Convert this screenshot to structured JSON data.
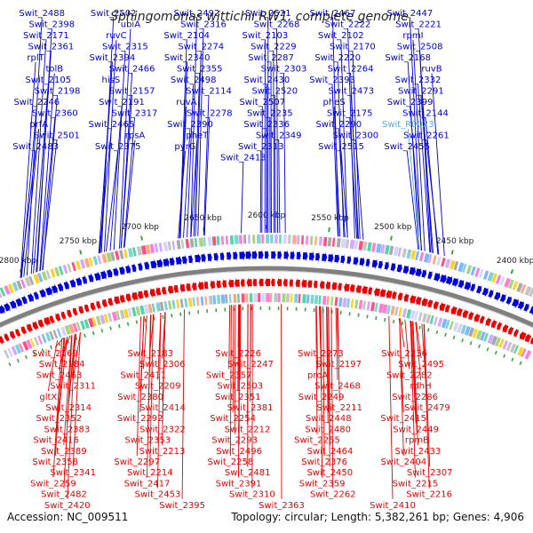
{
  "title": "Sphingomonas wittichii RW1, complete genome",
  "footer": {
    "accession": "Accession: NC_009511",
    "summary": "Topology: circular; Length: 5,382,261 bp; Genes: 4,906"
  },
  "colors": {
    "forward": "#0000dd",
    "reverse": "#ee0000",
    "rna": "#55aadd",
    "backbone": "#808080",
    "tick": "#33aa33"
  },
  "scale_ticks": [
    "2400 kbp",
    "2450 kbp",
    "2500 kbp",
    "2550 kbp",
    "2600 kbp",
    "2650 kbp",
    "2700 kbp",
    "2750 kbp",
    "2800 kbp"
  ],
  "top_labels": [
    "Swit_2488",
    "Swit_2502",
    "Swit_2492",
    "Swit_2521",
    "Swit_2467",
    "Swit_2447",
    "Swit_2398",
    "ubiA",
    "Swit_2316",
    "Swit_2268",
    "Swit_2222",
    "Swit_2221",
    "Swit_2171",
    "ruvC",
    "Swit_2104",
    "Swit_2103",
    "Swit_2102",
    "rpmI",
    "Swit_2361",
    "Swit_2315",
    "Swit_2274",
    "Swit_2229",
    "Swit_2170",
    "Swit_2508",
    "rplT",
    "Swit_2394",
    "Swit_2340",
    "Swit_2287",
    "Swit_2220",
    "Swit_2168",
    "tolB",
    "Swit_2466",
    "Swit_2355",
    "Swit_2303",
    "Swit_2264",
    "ruvB",
    "Swit_2105",
    "hisS",
    "Swit_2498",
    "Swit_2430",
    "Swit_2393",
    "Swit_2332",
    "Swit_2198",
    "Swit_2157",
    "Swit_2114",
    "Swit_2520",
    "Swit_2473",
    "Swit_2291",
    "Swit_2246",
    "Swit_2191",
    "ruvA",
    "Swit_2507",
    "pheS",
    "Swit_2399",
    "Swit_2360",
    "Swit_2317",
    "Swit_2278",
    "Swit_2235",
    "Swit_2175",
    "Swit_2144",
    "prfA",
    "Swit_2465",
    "Swit_2390",
    "Swit_2336",
    "Swit_2290",
    "Swit_R0023",
    "Swit_2501",
    "rpsA",
    "pheT",
    "Swit_2349",
    "Swit_2300",
    "Swit_2261",
    "Swit_2483",
    "Swit_2375",
    "pyrG",
    "Swit_2313",
    "Swit_2515",
    "Swit_2455",
    "Swit_2413"
  ],
  "bottom_labels": [
    "Swit_2169",
    "Swit_2183",
    "Swit_2226",
    "Swit_2273",
    "Swit_2236",
    "Swit_2184",
    "Swit_2306",
    "Swit_2247",
    "Swit_2197",
    "Swit_2495",
    "Swit_2463",
    "Swit_2411",
    "Swit_2357",
    "proA",
    "Swit_2282",
    "Swit_2311",
    "Swit_2209",
    "Swit_2503",
    "Swit_2468",
    "rdhH",
    "gltX",
    "Swit_2380",
    "Swit_2351",
    "Swit_2249",
    "Swit_2286",
    "Swit_2314",
    "Swit_2414",
    "Swit_2381",
    "Swit_2211",
    "Swit_2479",
    "Swit_2352",
    "Swit_2292",
    "Swit_2254",
    "Swit_2448",
    "Swit_2415",
    "Swit_2383",
    "Swit_2322",
    "Swit_2212",
    "Swit_2480",
    "Swit_2449",
    "Swit_2416",
    "Swit_2353",
    "Swit_2293",
    "Swit_2255",
    "rpmB",
    "Swit_2389",
    "Swit_2213",
    "Swit_2496",
    "Swit_2464",
    "Swit_2433",
    "Swit_2358",
    "Swit_2297",
    "Swit_2258",
    "Swit_2376",
    "Swit_2404",
    "Swit_2341",
    "Swit_2214",
    "Swit_2481",
    "Swit_2450",
    "Swit_2307",
    "Swit_2259",
    "Swit_2417",
    "Swit_2391",
    "Swit_2359",
    "Swit_2215",
    "Swit_2482",
    "Swit_2453",
    "Swit_2310",
    "Swit_2262",
    "Swit_2216",
    "Swit_2420",
    "Swit_2395",
    "Swit_2363",
    "Swit_2410"
  ]
}
